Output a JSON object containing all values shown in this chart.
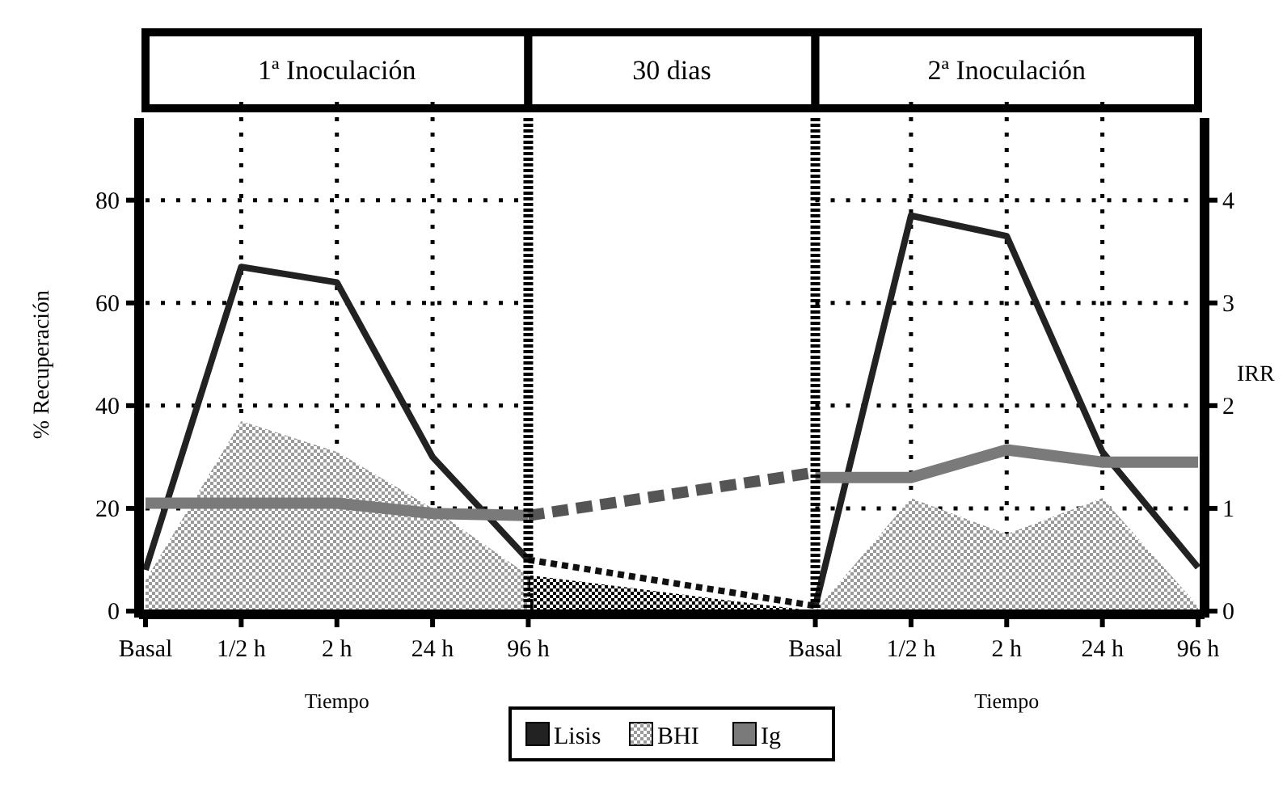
{
  "chart_data": {
    "type": "line",
    "categories": [
      "Basal",
      "1/2 h",
      "2 h",
      "24 h",
      "96 h",
      null,
      null,
      "Basal",
      "1/2 h",
      "2 h",
      "24 h",
      "96 h"
    ],
    "xlabel": "Tiempo",
    "ylabel": "% Recuperación",
    "y2label": "IRR",
    "ylim": [
      0,
      96
    ],
    "yticks": [
      0,
      20,
      40,
      60,
      80
    ],
    "y2lim": [
      0,
      4.8
    ],
    "y2ticks": [
      0,
      1,
      2,
      3,
      4
    ],
    "grid": true,
    "legend": "bottom",
    "annotations": [
      "1ª Inoculación",
      "30 dias",
      "2ª Inoculación"
    ],
    "series": [
      {
        "name": "Lisis",
        "color": "#222222",
        "values": [
          8,
          67,
          64,
          30,
          10,
          null,
          null,
          1,
          77,
          73,
          31,
          8.5
        ]
      },
      {
        "name": "BHI",
        "type": "area",
        "color": "#9a9a9a",
        "values": [
          6,
          37,
          31,
          20,
          7,
          null,
          null,
          0,
          22,
          15,
          22,
          1
        ]
      },
      {
        "name": "Ig",
        "axis": "y2",
        "color": "#7a7a7a",
        "values": [
          1.05,
          1.05,
          1.05,
          0.95,
          0.93,
          null,
          null,
          1.3,
          1.3,
          1.57,
          1.45,
          1.45
        ]
      },
      {
        "type": "area",
        "color": "#000000",
        "values": [
          null,
          null,
          null,
          null,
          7,
          4.7,
          2.3,
          0,
          null,
          null,
          null,
          null
        ]
      },
      {
        "axis": "y2",
        "color": "#555555",
        "line_style": "dashed",
        "values": [
          null,
          null,
          null,
          null,
          0.93,
          1.07,
          1.21,
          1.35,
          null,
          null,
          null,
          null
        ]
      },
      {
        "color": "#111111",
        "line_style": "dotted",
        "values": [
          null,
          null,
          null,
          null,
          10,
          7,
          4,
          1,
          null,
          null,
          null,
          null
        ]
      }
    ]
  }
}
